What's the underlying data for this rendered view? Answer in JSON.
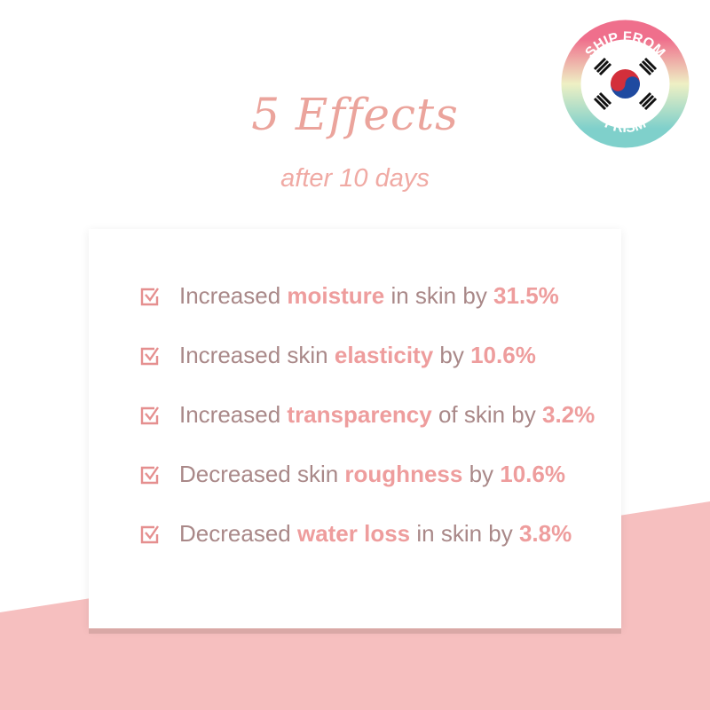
{
  "title": "5 Effects",
  "subtitle": "after 10 days",
  "items": [
    {
      "pre": "Increased ",
      "hl": "moisture",
      "mid": " in skin by ",
      "val": "31.5%"
    },
    {
      "pre": "Increased skin ",
      "hl": "elasticity",
      "mid": " by ",
      "val": "10.6%"
    },
    {
      "pre": "Increased ",
      "hl": "transparency",
      "mid": " of skin by ",
      "val": "3.2%"
    },
    {
      "pre": "Decreased skin ",
      "hl": "roughness",
      "mid": " by ",
      "val": "10.6%"
    },
    {
      "pre": "Decreased ",
      "hl": "water loss",
      "mid": " in skin by ",
      "val": "3.8%"
    }
  ],
  "badge": {
    "top": "SHIP FROM",
    "bottom": "PRISM",
    "icon": "korea-flag-icon"
  },
  "colors": {
    "text": "#a98888",
    "highlight": "#ee9d9d",
    "background_band": "#f6bfbf"
  }
}
